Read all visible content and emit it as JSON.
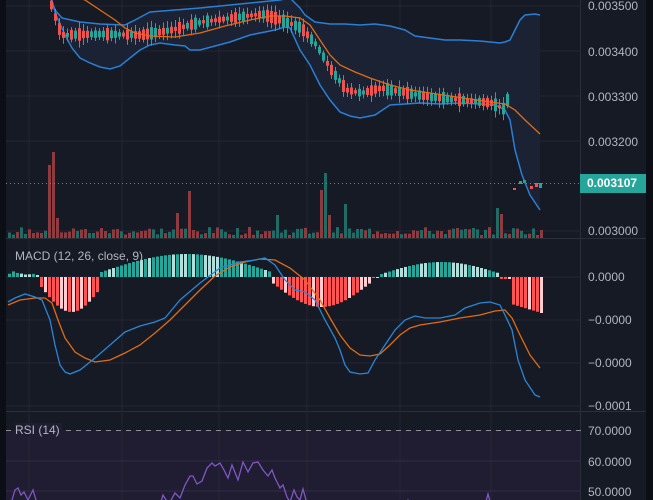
{
  "colors": {
    "background": "#161a25",
    "grid": "#242733",
    "up": "#26a69a",
    "down": "#ef5350",
    "up_volume": "#1f6b66",
    "down_volume": "#8e3b3f",
    "bb_band": "#2a7fd4",
    "bb_fill": "#1b2436",
    "bb_basis": "#e06c14",
    "macd_line": "#2a86d6",
    "signal_line": "#e06c14",
    "hist_up_strong": "#26a69a",
    "hist_up_weak": "#b2dfdb",
    "hist_down_strong": "#ff5252",
    "hist_down_weak": "#ffcdd2",
    "rsi_line": "#7e57c2",
    "rsi_band": "#201d33",
    "price_tag": "#26a69a"
  },
  "price_axis": {
    "labels": [
      "0.003500",
      "0.003400",
      "0.003300",
      "0.003200",
      "0.003000"
    ],
    "current_price": "0.003107"
  },
  "macd_axis": {
    "labels": [
      "0.0000",
      "−0.0000",
      "−0.0000",
      "−0.0001"
    ]
  },
  "rsi_axis": {
    "labels": [
      "70.0000",
      "60.0000",
      "50.0000"
    ]
  },
  "panes": {
    "macd_title": "MACD (12, 26, close, 9)",
    "rsi_title": "RSI (14)"
  },
  "chart_data": [
    {
      "type": "candlestick",
      "title": "Price with Bollinger Bands",
      "ylim": [
        0.00298,
        0.00352
      ],
      "current_price": 0.003107,
      "series": [
        {
          "name": "Bollinger Upper",
          "type": "line"
        },
        {
          "name": "Bollinger Basis",
          "type": "line"
        },
        {
          "name": "Bollinger Lower",
          "type": "line"
        }
      ],
      "note": "Downtrend from ~0.00345 to ~0.00310; bands widen at end"
    },
    {
      "type": "bar",
      "title": "Volume",
      "note": "Spikes near start (~x=50) and middle (~x=325)"
    },
    {
      "type": "line",
      "title": "MACD (12, 26, close, 9)",
      "series": [
        {
          "name": "MACD"
        },
        {
          "name": "Signal"
        },
        {
          "name": "Histogram",
          "type": "bar"
        }
      ],
      "y_tick_labels": [
        "0.0000",
        "-0.0000",
        "-0.0000",
        "-0.0001"
      ]
    },
    {
      "type": "line",
      "title": "RSI (14)",
      "y_tick_labels": [
        "70.0000",
        "60.0000",
        "50.0000"
      ],
      "upper_band": 70
    }
  ]
}
